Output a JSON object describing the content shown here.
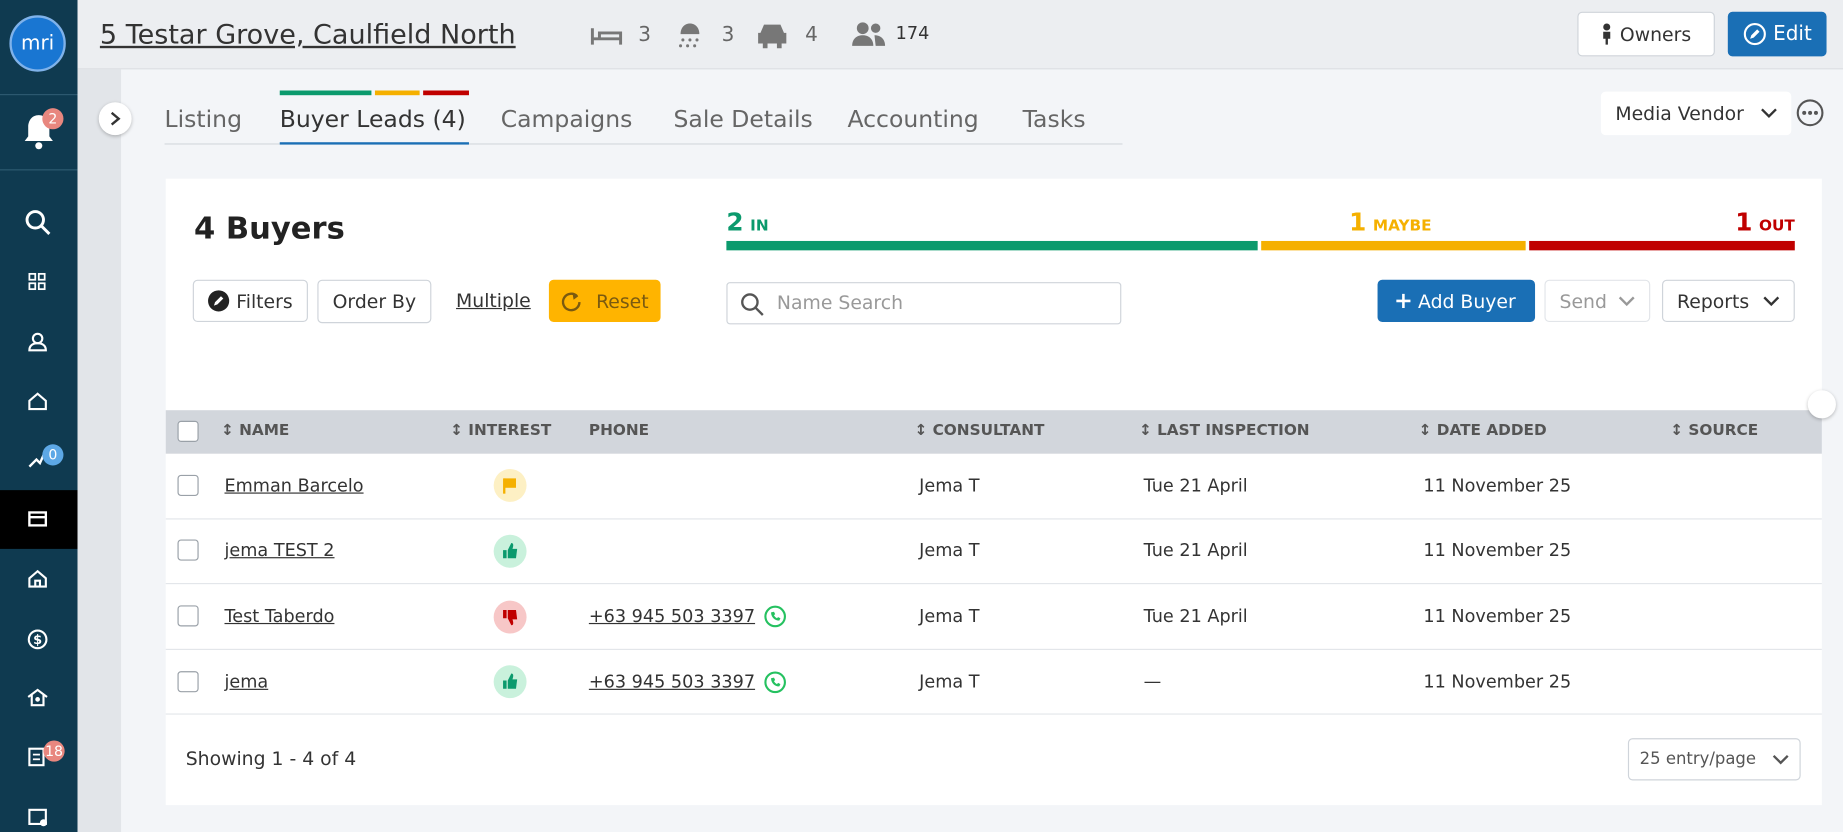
{
  "header": {
    "address": "5 Testar Grove, Caulfield North",
    "beds": 3,
    "baths": 3,
    "cars": 4,
    "contacts": 174,
    "owners_button": "Owners",
    "edit_button": "Edit"
  },
  "sidebar": {
    "logo": "mri",
    "notifications_badge": 2,
    "tasks_badge": 0,
    "reports_badge": 18
  },
  "tabs": [
    "Listing",
    "Buyer Leads (4)",
    "Campaigns",
    "Sale Details",
    "Accounting",
    "Tasks"
  ],
  "view_selector": "Media Vendor",
  "summary": {
    "title": "4 Buyers",
    "in": {
      "count": 2,
      "label": "IN"
    },
    "maybe": {
      "count": 1,
      "label": "MAYBE"
    },
    "out": {
      "count": 1,
      "label": "OUT"
    }
  },
  "toolbar": {
    "filters": "Filters",
    "order_by": "Order By",
    "multiple": "Multiple",
    "reset": "Reset",
    "search_placeholder": "Name Search",
    "add_buyer": "Add Buyer",
    "send": "Send",
    "reports": "Reports"
  },
  "table": {
    "columns": [
      "NAME",
      "INTEREST",
      "PHONE",
      "CONSULTANT",
      "LAST INSPECTION",
      "DATE ADDED",
      "SOURCE"
    ],
    "rows": [
      {
        "name": "Emman Barcelo",
        "consultant": "Jema T",
        "last_inspection": "Tue 21 April",
        "date_added": "11 November 25"
      },
      {
        "name": "jema TEST 2",
        "consultant": "Jema T",
        "last_inspection": "Tue 21 April",
        "date_added": "11 November 25"
      },
      {
        "name": "Test Taberdo",
        "phone": "+63 945 503 3397",
        "consultant": "Jema T",
        "last_inspection": "Tue 21 April",
        "date_added": "11 November 25"
      },
      {
        "name": "jema",
        "phone": "+63 945 503 3397",
        "consultant": "Jema T",
        "last_inspection": "—",
        "date_added": "11 November 25"
      }
    ]
  },
  "footer": {
    "showing": "Showing 1 - 4 of 4",
    "per_page": "25 entry/page"
  }
}
